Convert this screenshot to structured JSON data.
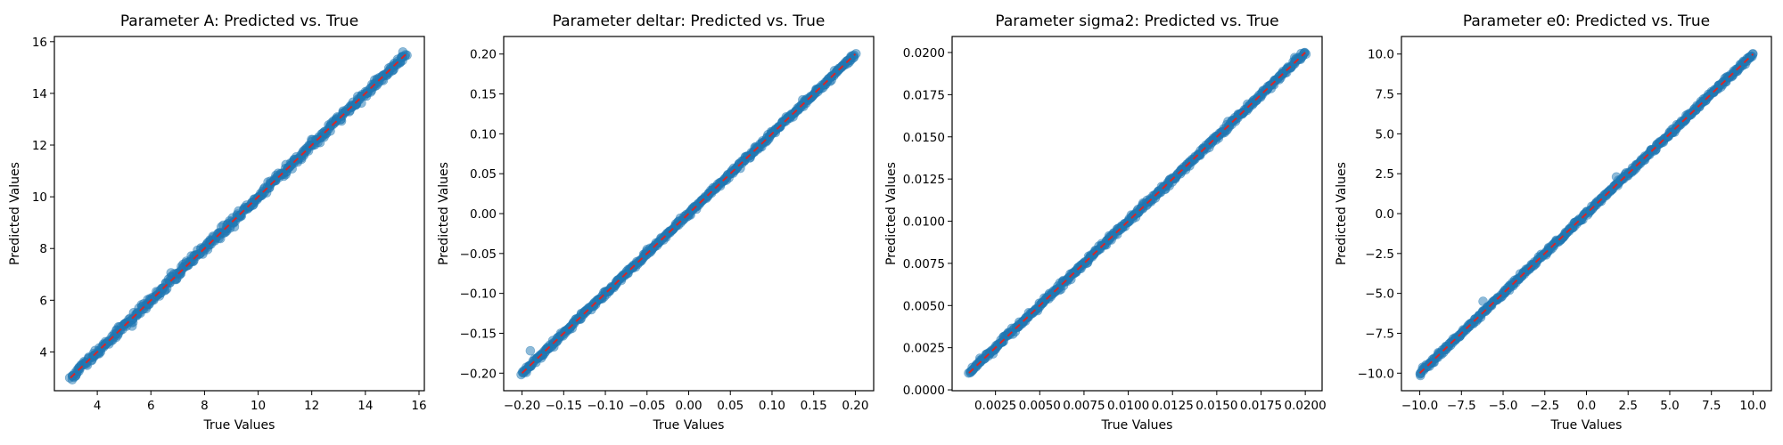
{
  "chart_data": [
    {
      "type": "scatter",
      "title": "Parameter A: Predicted vs. True",
      "xlabel": "True Values",
      "ylabel": "Predicted Values",
      "xlim": [
        2.4,
        16.2
      ],
      "ylim": [
        2.5,
        16.2
      ],
      "x_ticks": [
        4,
        6,
        8,
        10,
        12,
        14,
        16
      ],
      "x_tick_labels": [
        "4",
        "6",
        "8",
        "10",
        "12",
        "14",
        "16"
      ],
      "y_ticks": [
        4,
        6,
        8,
        10,
        12,
        14,
        16
      ],
      "y_tick_labels": [
        "4",
        "6",
        "8",
        "10",
        "12",
        "14",
        "16"
      ],
      "data_range": [
        3.0,
        15.5
      ],
      "spread": 0.08,
      "outliers": [
        [
          8.7,
          8.9
        ],
        [
          5.3,
          5.0
        ],
        [
          15.4,
          15.6
        ]
      ],
      "reference_line": {
        "from": 3.0,
        "to": 15.5,
        "color": "#d62728",
        "style": "dashed"
      },
      "point_color": "#1f77b4",
      "grid": false,
      "legend": "none"
    },
    {
      "type": "scatter",
      "title": "Parameter deltar: Predicted vs. True",
      "xlabel": "True Values",
      "ylabel": "Predicted Values",
      "xlim": [
        -0.222,
        0.222
      ],
      "ylim": [
        -0.222,
        0.222
      ],
      "x_ticks": [
        -0.2,
        -0.15,
        -0.1,
        -0.05,
        0.0,
        0.05,
        0.1,
        0.15,
        0.2
      ],
      "x_tick_labels": [
        "−0.20",
        "−0.15",
        "−0.10",
        "−0.05",
        "0.00",
        "0.05",
        "0.10",
        "0.15",
        "0.20"
      ],
      "y_ticks": [
        -0.2,
        -0.15,
        -0.1,
        -0.05,
        0.0,
        0.05,
        0.1,
        0.15,
        0.2
      ],
      "y_tick_labels": [
        "−0.20",
        "−0.15",
        "−0.10",
        "−0.05",
        "0.00",
        "0.05",
        "0.10",
        "0.15",
        "0.20"
      ],
      "data_range": [
        -0.2,
        0.2
      ],
      "spread": 0.0015,
      "outliers": [
        [
          -0.19,
          -0.172
        ],
        [
          -0.05,
          -0.045
        ]
      ],
      "reference_line": {
        "from": -0.2,
        "to": 0.2,
        "color": "#d62728",
        "style": "dashed"
      },
      "point_color": "#1f77b4",
      "grid": false,
      "legend": "none"
    },
    {
      "type": "scatter",
      "title": "Parameter sigma2: Predicted vs. True",
      "xlabel": "True Values",
      "ylabel": "Predicted Values",
      "xlim": [
        5e-05,
        0.02095
      ],
      "ylim": [
        -5e-05,
        0.02095
      ],
      "x_ticks": [
        0.0025,
        0.005,
        0.0075,
        0.01,
        0.0125,
        0.015,
        0.0175,
        0.02
      ],
      "x_tick_labels": [
        "0.0025",
        "0.0050",
        "0.0075",
        "0.0100",
        "0.0125",
        "0.0150",
        "0.0175",
        "0.0200"
      ],
      "y_ticks": [
        0.0,
        0.0025,
        0.005,
        0.0075,
        0.01,
        0.0125,
        0.015,
        0.0175,
        0.02
      ],
      "y_tick_labels": [
        "0.0000",
        "0.0025",
        "0.0050",
        "0.0075",
        "0.0100",
        "0.0125",
        "0.0150",
        "0.0175",
        "0.0200"
      ],
      "data_range": [
        0.001,
        0.02
      ],
      "spread": 8e-05,
      "outliers": [
        [
          0.0194,
          0.0197
        ],
        [
          0.0105,
          0.0106
        ]
      ],
      "reference_line": {
        "from": 0.001,
        "to": 0.02,
        "color": "#d62728",
        "style": "dashed"
      },
      "point_color": "#1f77b4",
      "grid": false,
      "legend": "none"
    },
    {
      "type": "scatter",
      "title": "Parameter e0: Predicted vs. True",
      "xlabel": "True Values",
      "ylabel": "Predicted Values",
      "xlim": [
        -11.1,
        11.1
      ],
      "ylim": [
        -11.1,
        11.1
      ],
      "x_ticks": [
        -10,
        -7.5,
        -5,
        -2.5,
        0,
        2.5,
        5,
        7.5,
        10
      ],
      "x_tick_labels": [
        "−10.0",
        "−7.5",
        "−5.0",
        "−2.5",
        "0.0",
        "2.5",
        "5.0",
        "7.5",
        "10.0"
      ],
      "y_ticks": [
        -10,
        -7.5,
        -5,
        -2.5,
        0,
        2.5,
        5,
        7.5,
        10
      ],
      "y_tick_labels": [
        "−10.0",
        "−7.5",
        "−5.0",
        "−2.5",
        "0.0",
        "2.5",
        "5.0",
        "7.5",
        "10.0"
      ],
      "data_range": [
        -10,
        10
      ],
      "spread": 0.07,
      "outliers": [
        [
          -6.2,
          -5.5
        ],
        [
          1.8,
          2.3
        ]
      ],
      "reference_line": {
        "from": -10,
        "to": 10,
        "color": "#d62728",
        "style": "dashed"
      },
      "point_color": "#1f77b4",
      "grid": false,
      "legend": "none"
    }
  ]
}
